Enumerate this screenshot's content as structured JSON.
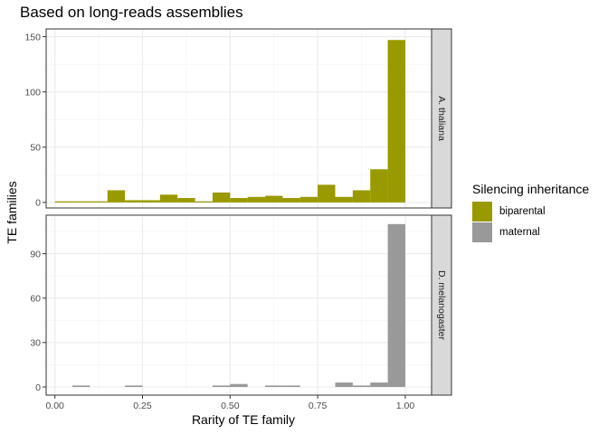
{
  "chart_data": {
    "type": "bar",
    "title": "Based on long-reads assemblies",
    "xlabel": "Rarity of TE family",
    "ylabel": "TE families",
    "legend": {
      "title": "Silencing inheritance",
      "position": "right",
      "entries": [
        {
          "label": "biparental",
          "color": "#999900"
        },
        {
          "label": "maternal",
          "color": "#999999"
        }
      ]
    },
    "x_ticks": [
      "0.00",
      "0.25",
      "0.50",
      "0.75",
      "1.00"
    ],
    "x_tick_values": [
      0,
      0.25,
      0.5,
      0.75,
      1.0
    ],
    "xlim": [
      -0.025,
      1.075
    ],
    "bin_width": 0.05,
    "grid": true,
    "panels": [
      {
        "strip": "A. thaliana",
        "series": "biparental",
        "color": "#999900",
        "ylim": [
          -5,
          157
        ],
        "y_ticks": [
          0,
          50,
          100,
          150
        ],
        "x": [
          0.025,
          0.075,
          0.125,
          0.175,
          0.225,
          0.275,
          0.325,
          0.375,
          0.425,
          0.475,
          0.525,
          0.575,
          0.625,
          0.675,
          0.725,
          0.775,
          0.825,
          0.875,
          0.925,
          0.975
        ],
        "values": [
          1,
          1,
          1,
          11,
          2,
          2,
          7,
          4,
          1,
          9,
          4,
          5,
          6,
          4,
          5,
          16,
          5,
          11,
          30,
          147
        ]
      },
      {
        "strip": "D. melanogaster",
        "series": "maternal",
        "color": "#999999",
        "ylim": [
          -5.5,
          116
        ],
        "y_ticks": [
          0,
          30,
          60,
          90
        ],
        "x": [
          0.025,
          0.075,
          0.125,
          0.175,
          0.225,
          0.275,
          0.325,
          0.375,
          0.425,
          0.475,
          0.525,
          0.575,
          0.625,
          0.675,
          0.725,
          0.775,
          0.825,
          0.875,
          0.925,
          0.975
        ],
        "values": [
          0,
          1,
          0,
          0,
          1,
          0,
          0,
          0,
          0,
          1,
          2,
          0,
          1,
          1,
          0,
          0,
          3,
          1,
          3,
          110
        ]
      }
    ]
  }
}
